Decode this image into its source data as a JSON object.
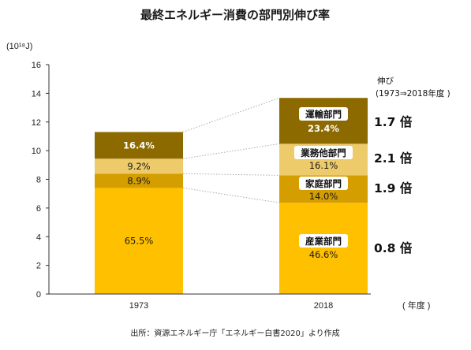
{
  "chart_data": {
    "type": "bar",
    "stacked": true,
    "title": "最終エネルギー消費の部門別伸び率",
    "y_unit": "(10¹⁸J)",
    "x_unit": "( 年度 )",
    "ylim": [
      0,
      16
    ],
    "y_ticks": [
      "0",
      "2",
      "4",
      "6",
      "8",
      "10",
      "12",
      "14",
      "16"
    ],
    "categories": [
      "1973",
      "2018"
    ],
    "series": [
      {
        "name": "産業部門",
        "color": "#FFC000",
        "values": [
          7.4,
          6.37
        ],
        "labels": [
          "65.5%",
          "46.6%"
        ]
      },
      {
        "name": "家庭部門",
        "color": "#D49E00",
        "values": [
          1.0,
          1.91
        ],
        "labels": [
          "8.9%",
          "14.0%"
        ]
      },
      {
        "name": "業務他部門",
        "color": "#EDCA6A",
        "values": [
          1.04,
          2.2
        ],
        "labels": [
          "9.2%",
          "16.1%"
        ]
      },
      {
        "name": "運輸部門",
        "color": "#8C6A00",
        "values": [
          1.86,
          3.2
        ],
        "labels": [
          "16.4%",
          "23.4%"
        ]
      }
    ],
    "growth": {
      "title_line1": "伸び",
      "title_line2": "(1973⇒2018年度 )",
      "ratios": [
        "0.8 倍",
        "1.9 倍",
        "2.1 倍",
        "1.7 倍"
      ]
    },
    "source": "出所：資源エネルギー庁「エネルギー白書2020」より作成",
    "grid": false
  }
}
